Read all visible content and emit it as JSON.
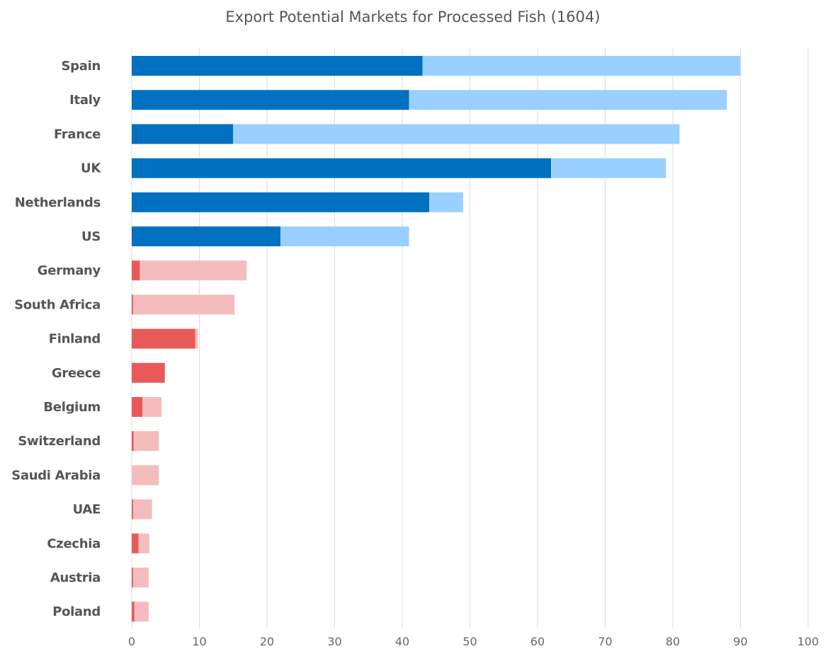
{
  "chart_data": {
    "type": "bar",
    "orientation": "horizontal",
    "stacked": true,
    "title": "Export Potential Markets for Processed Fish (1604)",
    "xlabel": "",
    "ylabel": "",
    "xlim": [
      0,
      100
    ],
    "xticks": [
      0,
      10,
      20,
      30,
      40,
      50,
      60,
      70,
      80,
      90,
      100
    ],
    "grid": "vertical",
    "legend": "none",
    "categories": [
      "Spain",
      "Italy",
      "France",
      "UK",
      "Netherlands",
      "US",
      "Germany",
      "South Africa",
      "Finland",
      "Greece",
      "Belgium",
      "Switzerland",
      "Saudi Arabia",
      "UAE",
      "Czechia",
      "Austria",
      "Poland"
    ],
    "series": [
      {
        "values": [
          43,
          41,
          15,
          62,
          44,
          22,
          1.2,
          0.2,
          9.4,
          4.9,
          1.6,
          0.3,
          0,
          0.2,
          1,
          0.2,
          0.4
        ]
      },
      {
        "values": [
          47,
          47,
          66,
          17,
          5,
          19,
          15.8,
          15,
          0.4,
          0,
          2.8,
          3.7,
          4,
          2.8,
          1.6,
          2.3,
          2.1
        ]
      }
    ],
    "category_colors": {
      "primary": [
        "#0070c0",
        "#0070c0",
        "#0070c0",
        "#0070c0",
        "#0070c0",
        "#0070c0",
        "#e85a5a",
        "#e85a5a",
        "#e85a5a",
        "#e85a5a",
        "#e85a5a",
        "#e85a5a",
        "#e85a5a",
        "#e85a5a",
        "#e85a5a",
        "#e85a5a",
        "#e85a5a"
      ],
      "secondary": [
        "#99d0ff",
        "#99d0ff",
        "#99d0ff",
        "#99d0ff",
        "#99d0ff",
        "#99d0ff",
        "#f4bcbc",
        "#f4bcbc",
        "#f4bcbc",
        "#f4bcbc",
        "#f4bcbc",
        "#f4bcbc",
        "#f4bcbc",
        "#f4bcbc",
        "#f4bcbc",
        "#f4bcbc",
        "#f4bcbc"
      ]
    }
  }
}
